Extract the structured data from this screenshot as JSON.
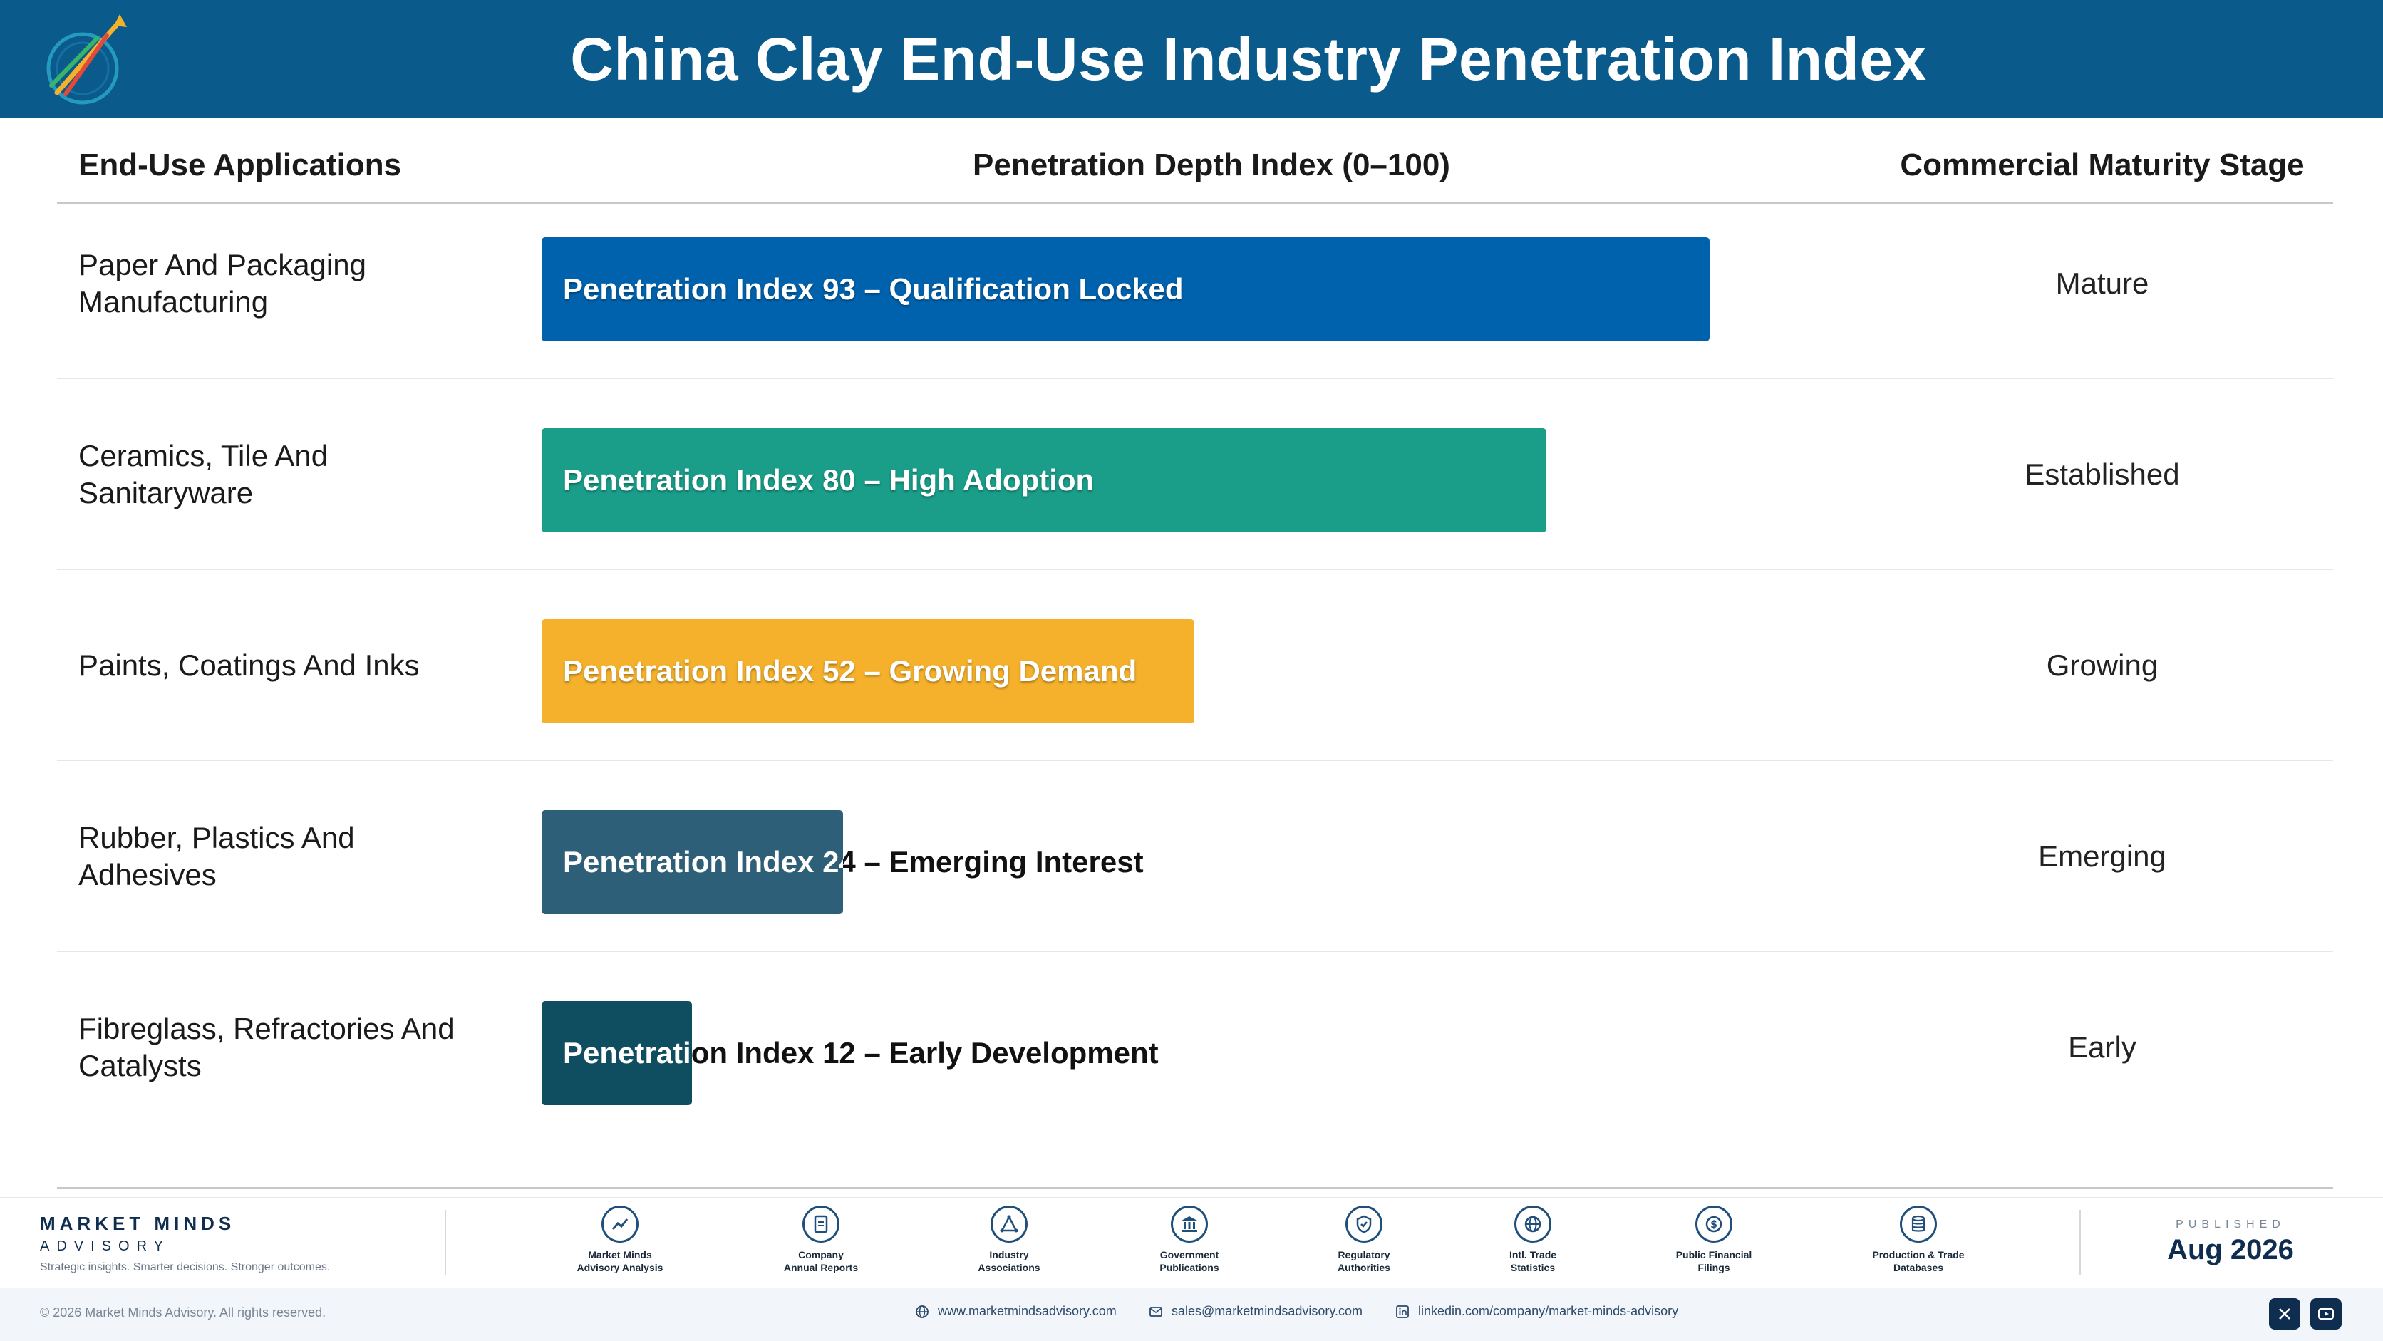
{
  "header": {
    "title": "China Clay End-Use Industry Penetration Index"
  },
  "colors": {
    "header_bg": "#0a5a8c",
    "bar_mature": "#0062ad",
    "bar_established": "#1a9e8a",
    "bar_growing": "#f5b12b",
    "bar_emerging": "#2d5f78",
    "bar_early": "#0e4e60"
  },
  "chart_data": {
    "type": "bar",
    "orientation": "horizontal",
    "xlim": [
      0,
      100
    ],
    "column_headers": [
      "End-Use Applications",
      "Penetration Depth Index (0–100)",
      "Commercial Maturity Stage"
    ],
    "categories": [
      "Paper And Packaging Manufacturing",
      "Ceramics, Tile And Sanitaryware",
      "Paints, Coatings And Inks",
      "Rubber, Plastics And Adhesives",
      "Fibreglass, Refractories And Catalysts"
    ],
    "values": [
      93,
      80,
      52,
      24,
      12
    ],
    "bar_labels": [
      "Penetration Index 93 – Qualification Locked",
      "Penetration Index 80 – High Adoption",
      "Penetration Index 52 – Growing Demand",
      "Penetration Index 24 – Emerging Interest",
      "Penetration Index 12 – Early Development"
    ],
    "stages": [
      "Mature",
      "Established",
      "Growing",
      "Emerging",
      "Early"
    ],
    "bar_colors": [
      "#0062ad",
      "#1a9e8a",
      "#f5b12b",
      "#2d5f78",
      "#0e4e60"
    ]
  },
  "footer": {
    "brand_name": "MARKET MINDS",
    "brand_sub": "ADVISORY",
    "tagline": "Strategic insights. Smarter decisions. Stronger outcomes.",
    "sources": [
      {
        "line1": "Market Minds",
        "line2": "Advisory Analysis",
        "icon": "chart-line-icon"
      },
      {
        "line1": "Company",
        "line2": "Annual Reports",
        "icon": "document-icon"
      },
      {
        "line1": "Industry",
        "line2": "Associations",
        "icon": "network-icon"
      },
      {
        "line1": "Government",
        "line2": "Publications",
        "icon": "government-building-icon"
      },
      {
        "line1": "Regulatory",
        "line2": "Authorities",
        "icon": "shield-check-icon"
      },
      {
        "line1": "Intl. Trade",
        "line2": "Statistics",
        "icon": "globe-icon"
      },
      {
        "line1": "Public Financial",
        "line2": "Filings",
        "icon": "dollar-coin-icon"
      },
      {
        "line1": "Production & Trade",
        "line2": "Databases",
        "icon": "database-icon"
      }
    ],
    "published_label": "PUBLISHED",
    "published_date": "Aug 2026",
    "copyright": "© 2026 Market Minds Advisory. All rights reserved.",
    "website": "www.marketmindsadvisory.com",
    "email": "sales@marketmindsadvisory.com",
    "linkedin": "linkedin.com/company/market-minds-advisory"
  }
}
